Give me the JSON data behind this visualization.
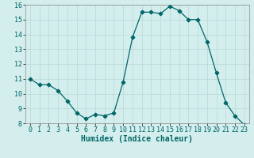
{
  "x": [
    0,
    1,
    2,
    3,
    4,
    5,
    6,
    7,
    8,
    9,
    10,
    11,
    12,
    13,
    14,
    15,
    16,
    17,
    18,
    19,
    20,
    21,
    22,
    23
  ],
  "y": [
    11.0,
    10.6,
    10.6,
    10.2,
    9.5,
    8.7,
    8.3,
    8.6,
    8.5,
    8.7,
    10.8,
    13.8,
    15.5,
    15.5,
    15.4,
    15.9,
    15.6,
    15.0,
    15.0,
    13.5,
    11.4,
    9.4,
    8.5,
    7.9
  ],
  "line_color": "#006666",
  "marker": "D",
  "marker_size": 2.5,
  "bg_color": "#d4eeee",
  "grid_color": "#b8d8d8",
  "xlabel": "Humidex (Indice chaleur)",
  "xlabel_fontsize": 7,
  "tick_fontsize": 6,
  "ylim": [
    8,
    16
  ],
  "xlim": [
    -0.5,
    23.5
  ],
  "yticks": [
    8,
    9,
    10,
    11,
    12,
    13,
    14,
    15,
    16
  ],
  "xticks": [
    0,
    1,
    2,
    3,
    4,
    5,
    6,
    7,
    8,
    9,
    10,
    11,
    12,
    13,
    14,
    15,
    16,
    17,
    18,
    19,
    20,
    21,
    22,
    23
  ]
}
